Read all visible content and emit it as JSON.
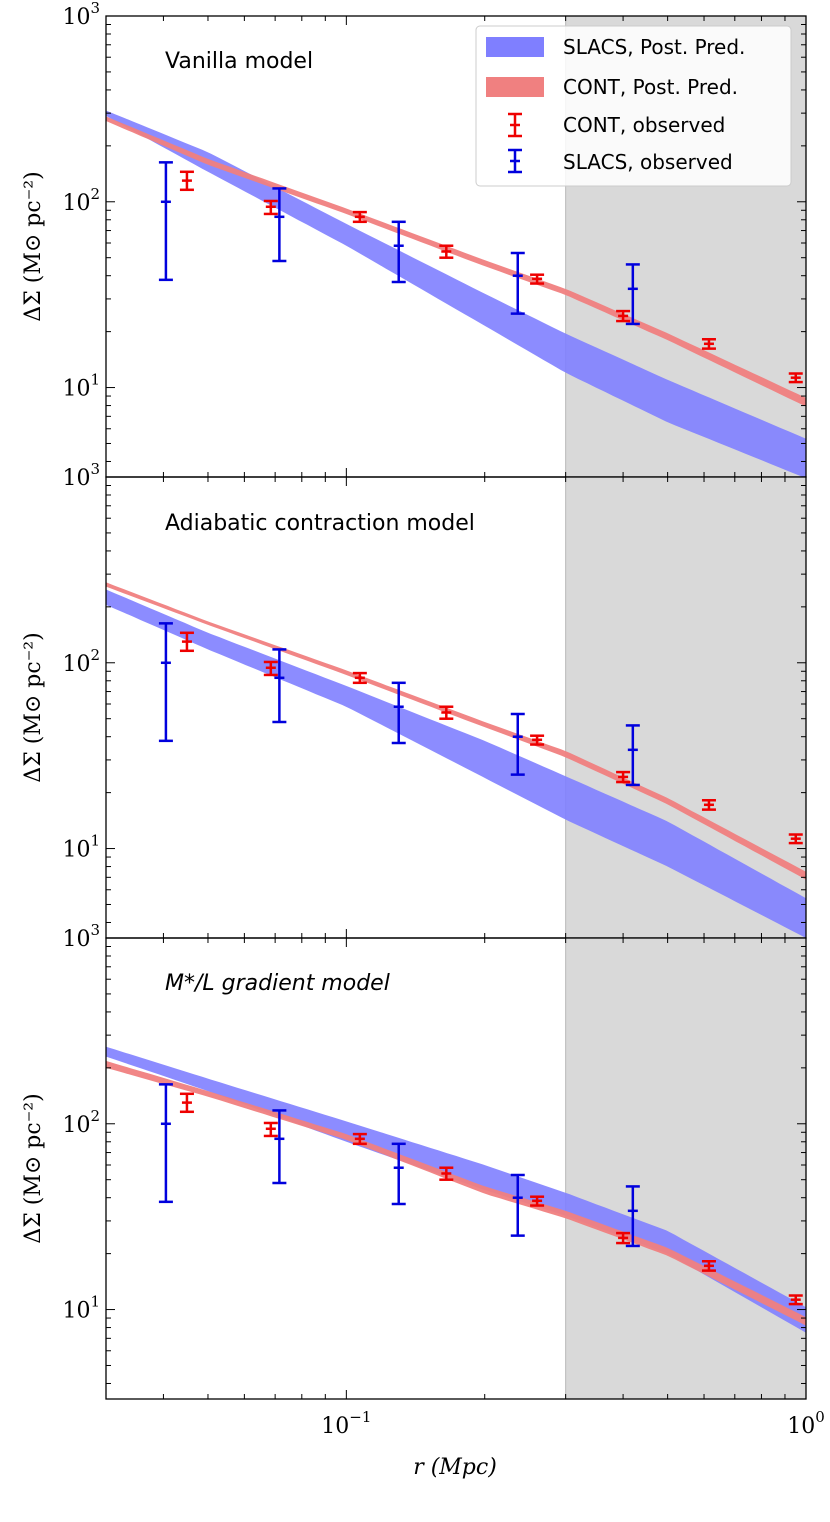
{
  "chart_data": {
    "type": "line",
    "xscale": "log",
    "yscale": "log",
    "xlim": [
      0.03,
      1.0
    ],
    "ylim": [
      3.3,
      1000
    ],
    "xlabel": "r (Mpc)",
    "ylabel": "ΔΣ (M⊙ pc⁻²)",
    "x_ticks": [
      {
        "value": 0.1,
        "base": "10",
        "exp": "−1"
      },
      {
        "value": 1.0,
        "base": "10",
        "exp": "0"
      }
    ],
    "y_ticks": [
      {
        "value": 10,
        "base": "10",
        "exp": "1"
      },
      {
        "value": 100,
        "base": "10",
        "exp": "2"
      },
      {
        "value": 1000,
        "base": "10",
        "exp": "3"
      }
    ],
    "shaded_region": {
      "x_from": 0.3,
      "x_to": 1.0,
      "color": "#d9d9d9"
    },
    "colors": {
      "slacs_band": "#7f7fff",
      "cont_band": "#f08080",
      "slacs_obs": "#0000dd",
      "cont_obs": "#ee0000"
    },
    "legend": {
      "placement": "top-right",
      "entries": [
        {
          "label": "SLACS, Post. Pred.",
          "kind": "band",
          "series": "slacs"
        },
        {
          "label": "CONT, Post. Pred.",
          "kind": "band",
          "series": "cont"
        },
        {
          "label": "CONT, observed",
          "kind": "errorbar",
          "series": "cont"
        },
        {
          "label": "SLACS, observed",
          "kind": "errorbar",
          "series": "slacs"
        }
      ]
    },
    "observed": {
      "cont": [
        {
          "r": 0.045,
          "y": 130,
          "lo": 116,
          "hi": 145
        },
        {
          "r": 0.0685,
          "y": 94,
          "lo": 86,
          "hi": 101
        },
        {
          "r": 0.107,
          "y": 83,
          "lo": 78,
          "hi": 88
        },
        {
          "r": 0.165,
          "y": 54,
          "lo": 50,
          "hi": 58
        },
        {
          "r": 0.26,
          "y": 38.5,
          "lo": 36.3,
          "hi": 40.5
        },
        {
          "r": 0.4,
          "y": 24.3,
          "lo": 22.8,
          "hi": 25.8
        },
        {
          "r": 0.615,
          "y": 17.2,
          "lo": 16.2,
          "hi": 18.2
        },
        {
          "r": 0.95,
          "y": 11.3,
          "lo": 10.7,
          "hi": 11.9
        }
      ],
      "slacs": [
        {
          "r": 0.0405,
          "y": 100,
          "lo": 38,
          "hi": 163
        },
        {
          "r": 0.0715,
          "y": 83,
          "lo": 48,
          "hi": 118
        },
        {
          "r": 0.13,
          "y": 58,
          "lo": 37,
          "hi": 78
        },
        {
          "r": 0.236,
          "y": 40,
          "lo": 25,
          "hi": 53
        },
        {
          "r": 0.42,
          "y": 34,
          "lo": 22,
          "hi": 46
        }
      ]
    },
    "panels": [
      {
        "title": "Vanilla model",
        "x": [
          0.03,
          0.05,
          0.1,
          0.2,
          0.3,
          0.5,
          1.0
        ],
        "slacs_band": {
          "lo": [
            290,
            145,
            58,
            21.5,
            12.0,
            6.5,
            3.25
          ],
          "hi": [
            310,
            185,
            76,
            32,
            19.5,
            11.0,
            5.3
          ]
        },
        "cont_band": {
          "lo": [
            272,
            158,
            86,
            45,
            31.5,
            18.0,
            7.9
          ],
          "hi": [
            288,
            170,
            92,
            48.5,
            34.0,
            19.6,
            8.8
          ]
        }
      },
      {
        "title": "Adiabatic contraction model",
        "x": [
          0.03,
          0.05,
          0.1,
          0.2,
          0.3,
          0.5,
          1.0
        ],
        "slacs_band": {
          "lo": [
            205,
            118,
            58,
            24,
            14.3,
            8.0,
            3.3
          ],
          "hi": [
            248,
            145,
            75,
            38,
            24.5,
            14.0,
            5.4
          ]
        },
        "cont_band": {
          "lo": [
            257,
            160,
            86,
            45,
            31.0,
            17.3,
            6.8
          ],
          "hi": [
            271,
            167,
            91,
            48,
            33.5,
            18.7,
            7.5
          ]
        }
      },
      {
        "title": "M*/L gradient model",
        "x": [
          0.03,
          0.05,
          0.1,
          0.2,
          0.3,
          0.5,
          1.0
        ],
        "slacs_band": {
          "lo": [
            230,
            150,
            80,
            44,
            32,
            20,
            7.5
          ],
          "hi": [
            260,
            175,
            103,
            60,
            42.5,
            26.5,
            10.3
          ]
        },
        "cont_band": {
          "lo": [
            200,
            140,
            82,
            42,
            31.0,
            19.5,
            8.2
          ],
          "hi": [
            218,
            150,
            88,
            46,
            34.0,
            21.5,
            9.1
          ]
        }
      }
    ]
  }
}
